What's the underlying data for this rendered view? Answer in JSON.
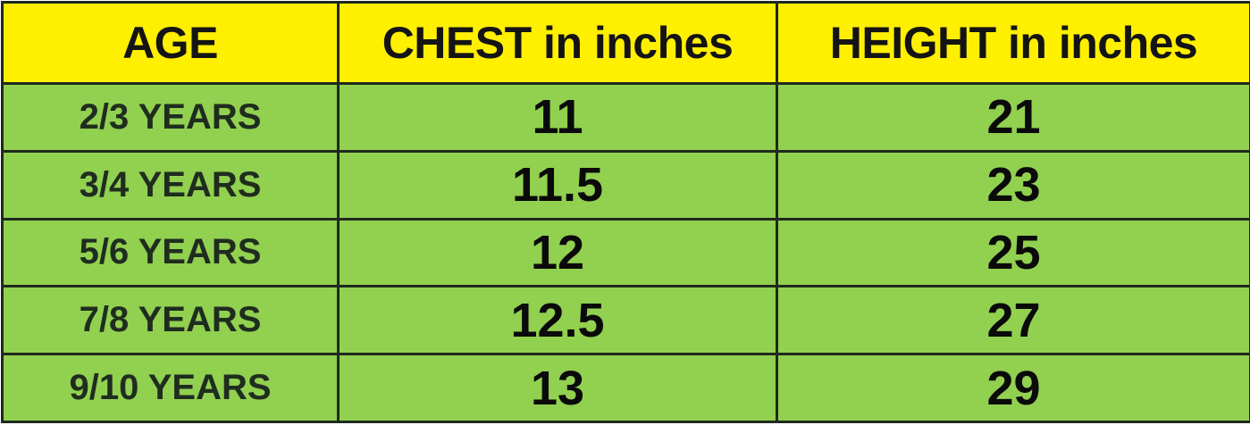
{
  "table": {
    "header": [
      "AGE",
      "CHEST in inches",
      "HEIGHT in inches"
    ],
    "rows": [
      [
        "2/3 YEARS",
        11,
        21
      ],
      [
        "3/4 YEARS",
        11.5,
        23
      ],
      [
        "5/6 YEARS",
        12,
        25
      ],
      [
        "7/8 YEARS",
        12.5,
        27
      ],
      [
        "9/10 YEARS",
        13,
        29
      ]
    ]
  }
}
